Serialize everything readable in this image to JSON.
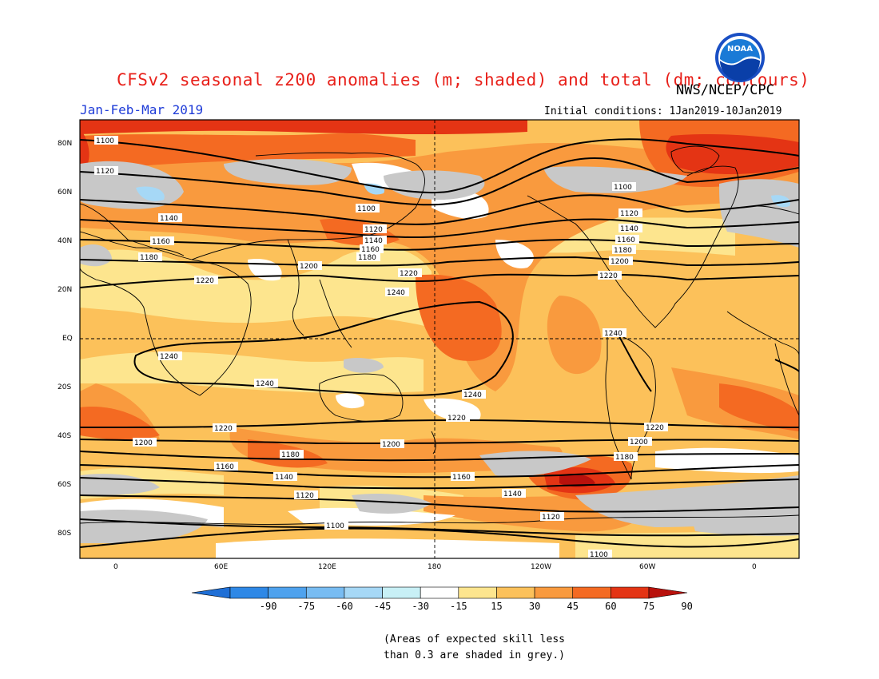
{
  "header": {
    "title": "CFSv2 seasonal z200 anomalies (m; shaded) and total (dm; contours)",
    "agency": "NWS/NCEP/CPC",
    "period": "Jan-Feb-Mar 2019",
    "initial_conditions": "Initial conditions: 1Jan2019-10Jan2019",
    "logo_text": "NOAA"
  },
  "map": {
    "lat_labels": [
      "80N",
      "60N",
      "40N",
      "20N",
      "EQ",
      "20S",
      "40S",
      "60S",
      "80S"
    ],
    "lon_labels": [
      "0",
      "60E",
      "120E",
      "180",
      "120W",
      "60W",
      "0"
    ],
    "contour_labels": [
      "1100",
      "1120",
      "1140",
      "1160",
      "1180",
      "1200",
      "1220",
      "1240"
    ],
    "colors": {
      "grey_low_skill": "#c8c8c8",
      "coast": "#000000"
    }
  },
  "colorbar": {
    "labels": [
      "-90",
      "-75",
      "-60",
      "-45",
      "-30",
      "-15",
      "15",
      "30",
      "45",
      "60",
      "75",
      "90"
    ],
    "colors": [
      "#1f6fd6",
      "#2e88e6",
      "#4ea2ee",
      "#78bcf2",
      "#a6d8f6",
      "#c8f0f6",
      "#ffffff",
      "#fde58e",
      "#fcc15a",
      "#f99a3e",
      "#f46a22",
      "#e43414",
      "#b8110c"
    ]
  },
  "note": {
    "line1": "(Areas of expected skill less",
    "line2": "than 0.3 are shaded in grey.)"
  }
}
